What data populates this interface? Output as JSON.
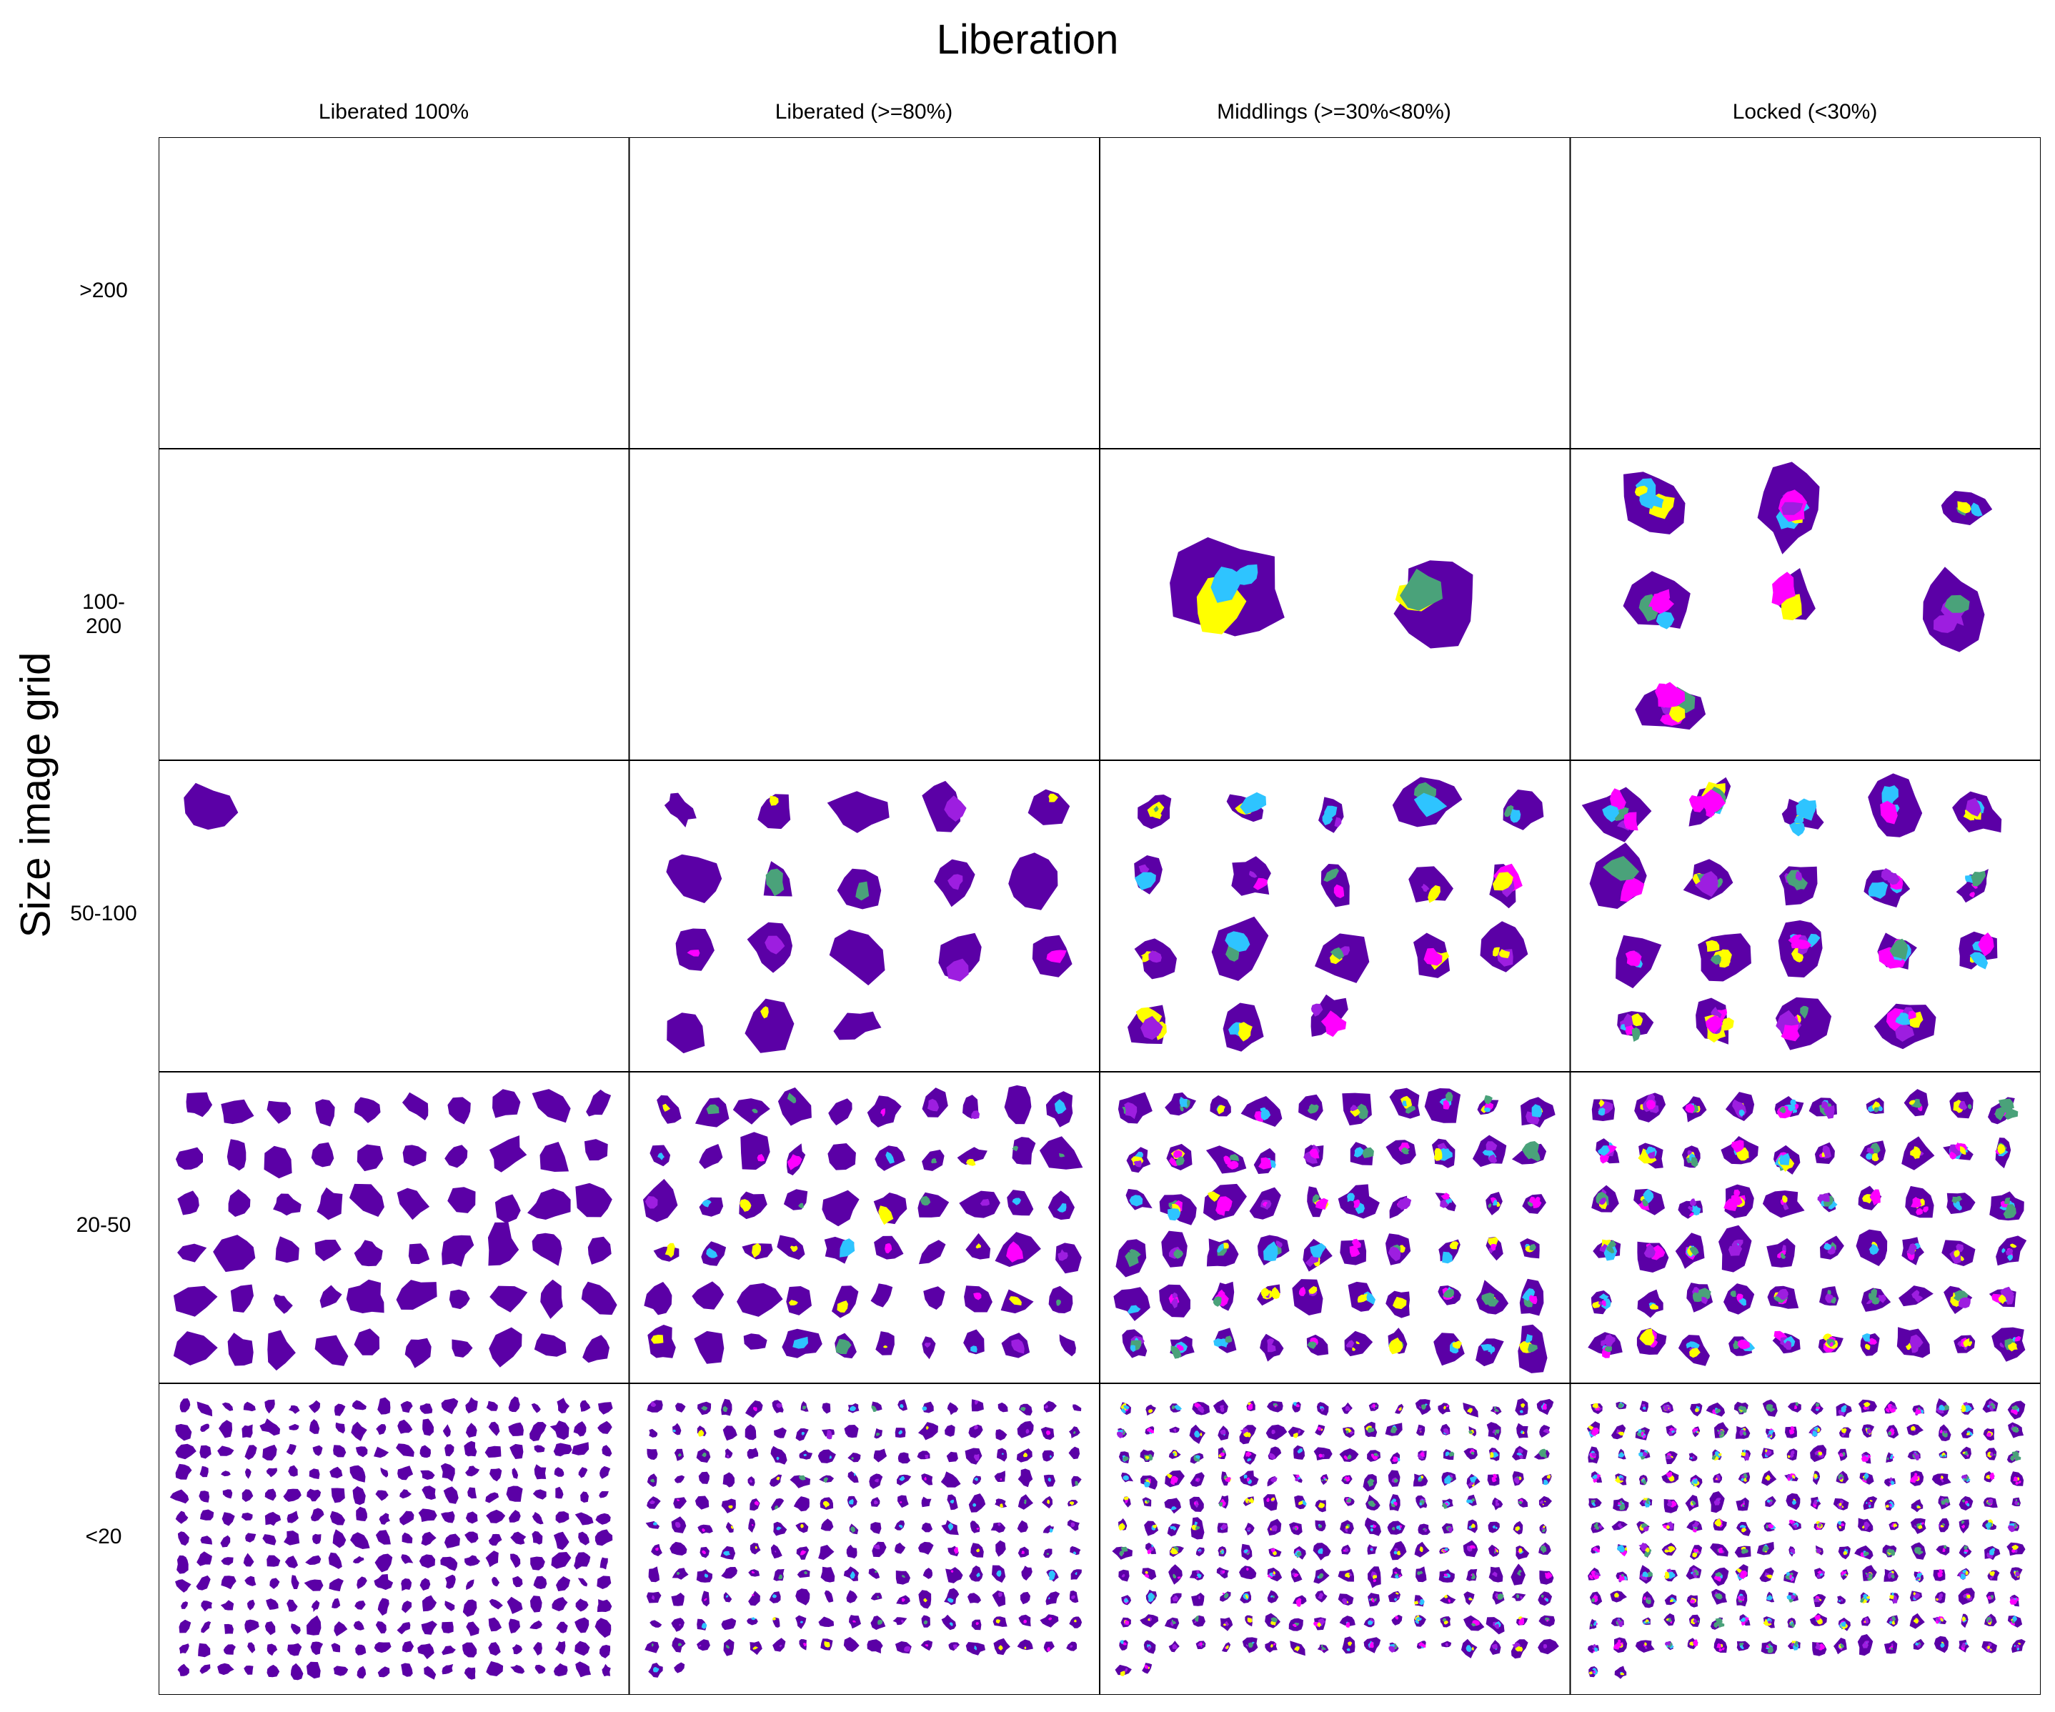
{
  "title": "Liberation",
  "ylabel": "Size image grid",
  "columns": [
    {
      "label": "Liberated 100%"
    },
    {
      "label": "Liberated (>=80%)"
    },
    {
      "label": "Middlings (>=30%<80%)"
    },
    {
      "label": "Locked (<30%)"
    }
  ],
  "rows": [
    {
      "label": ">200"
    },
    {
      "label": "100-200"
    },
    {
      "label": "50-100"
    },
    {
      "label": "20-50"
    },
    {
      "label": "<20"
    }
  ],
  "colors": {
    "mineral": "#5b00a6",
    "yellow": "#ffff00",
    "cyan": "#2ec4ff",
    "green": "#4aa27a",
    "violet": "#9d1ee0",
    "magenta": "#ff00ff",
    "border": "#000000"
  },
  "cells": [
    [
      {
        "count": 0,
        "mix": 0
      },
      {
        "count": 0,
        "mix": 0
      },
      {
        "count": 0,
        "mix": 0
      },
      {
        "count": 0,
        "mix": 0
      }
    ],
    [
      {
        "count": 0,
        "mix": 0
      },
      {
        "count": 0,
        "mix": 0
      },
      {
        "count": 2,
        "mix": 0.45
      },
      {
        "count": 7,
        "mix": 0.8
      }
    ],
    [
      {
        "count": 1,
        "mix": 0
      },
      {
        "count": 18,
        "mix": 0.1
      },
      {
        "count": 18,
        "mix": 0.45
      },
      {
        "count": 19,
        "mix": 0.8
      }
    ],
    [
      {
        "count": 60,
        "mix": 0
      },
      {
        "count": 60,
        "mix": 0.1
      },
      {
        "count": 60,
        "mix": 0.45
      },
      {
        "count": 60,
        "mix": 0.8
      }
    ],
    [
      {
        "count": 260,
        "mix": 0
      },
      {
        "count": 200,
        "mix": 0.1
      },
      {
        "count": 200,
        "mix": 0.45
      },
      {
        "count": 200,
        "mix": 0.8
      }
    ]
  ]
}
